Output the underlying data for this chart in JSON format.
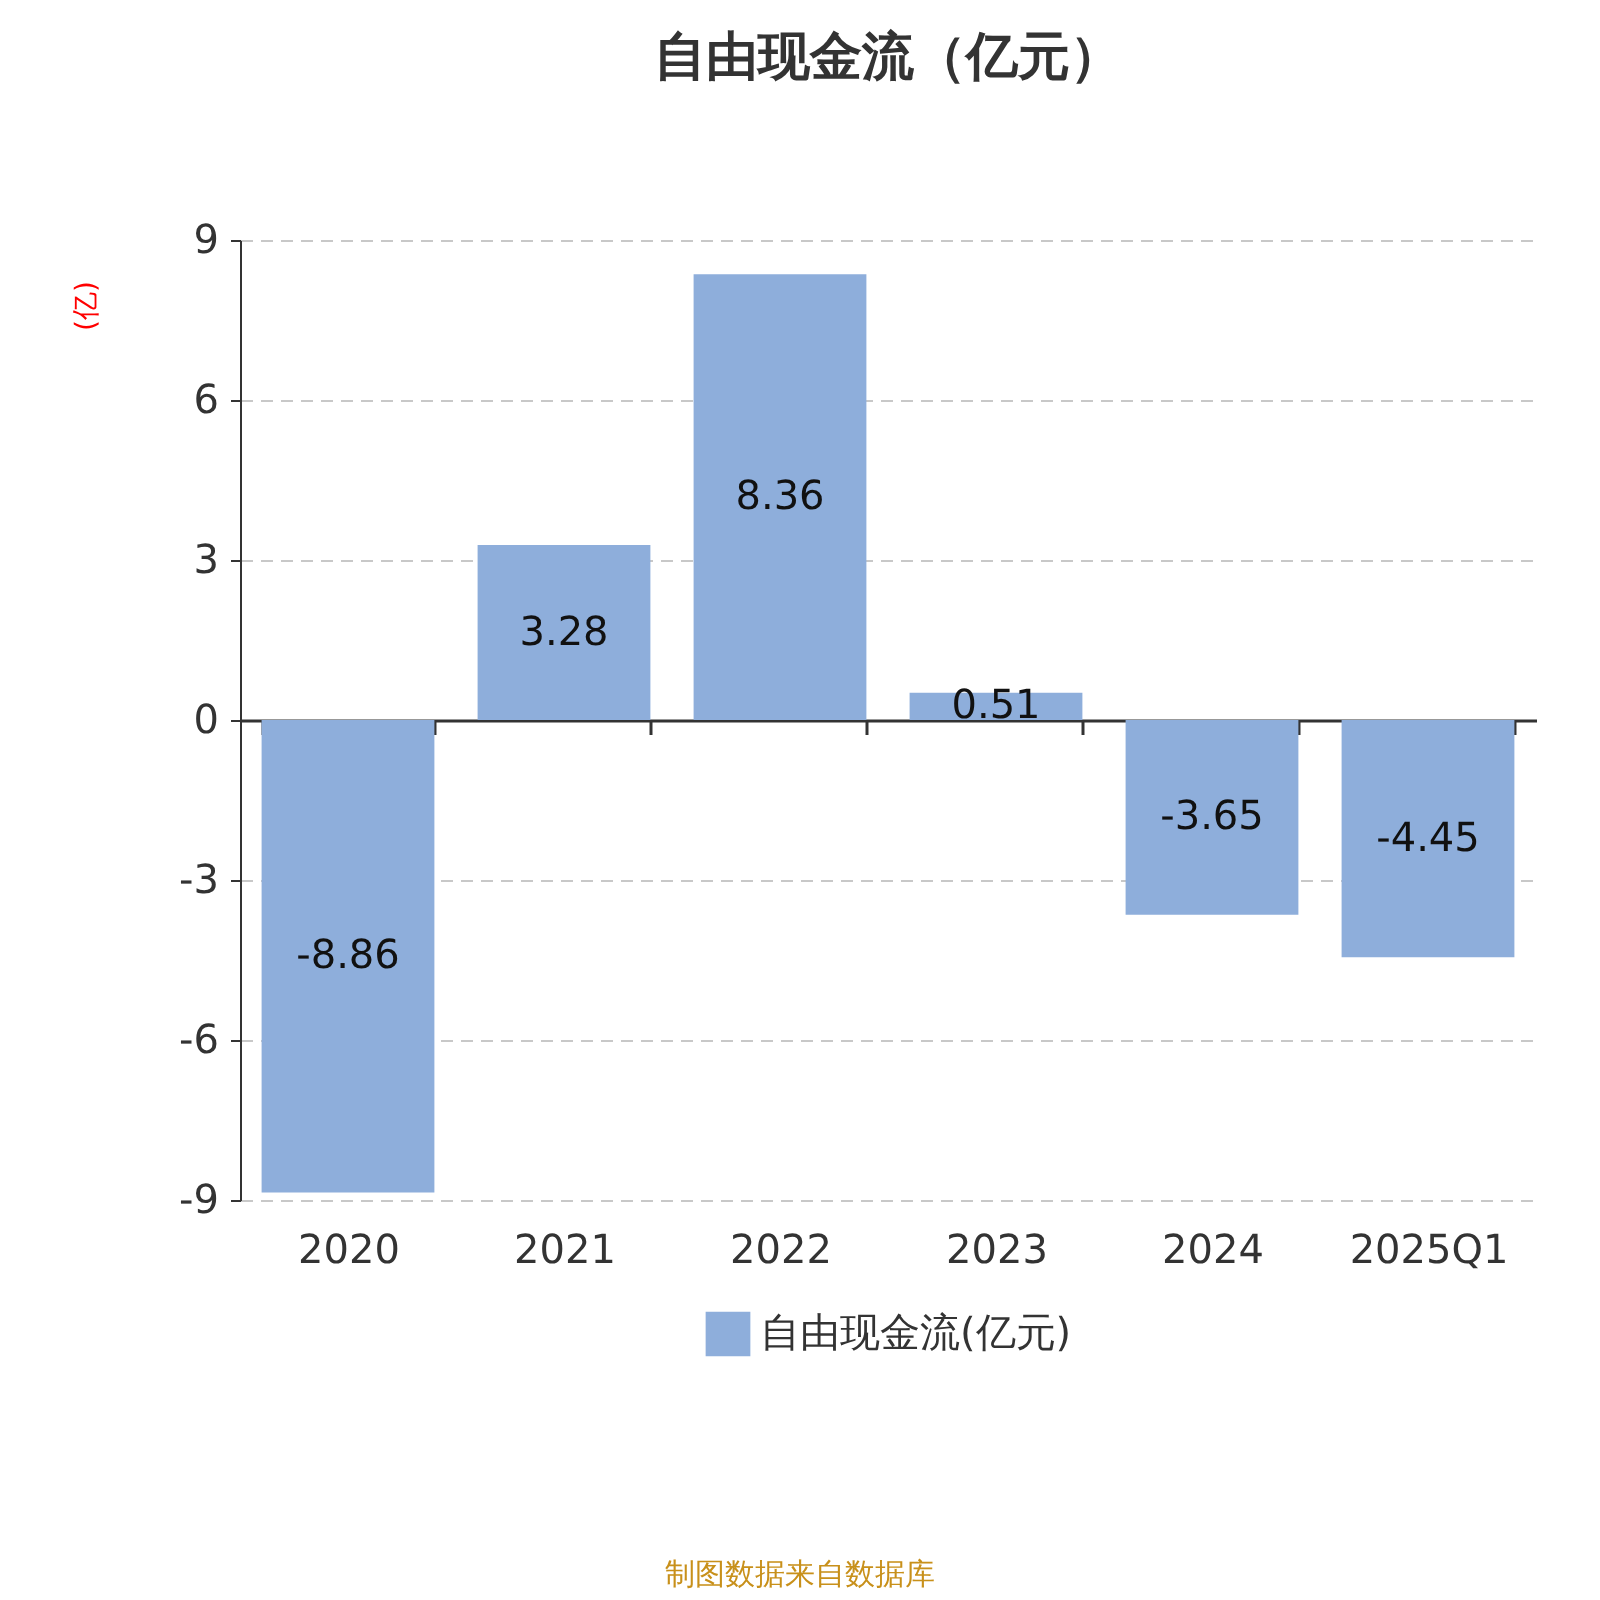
{
  "chart_data": {
    "type": "bar",
    "title": "自由现金流（亿元）",
    "ylabel": "(亿)",
    "categories": [
      "2020",
      "2021",
      "2022",
      "2023",
      "2024",
      "2025Q1"
    ],
    "series": [
      {
        "name": "自由现金流(亿元)",
        "color": "#8eaedb",
        "values": [
          -8.86,
          3.28,
          8.36,
          0.51,
          -3.65,
          -4.45
        ]
      }
    ],
    "ylim": [
      -9,
      9
    ],
    "yticks": [
      -9,
      -6,
      -3,
      0,
      3,
      6,
      9
    ],
    "grid": "y",
    "legend": "bottom",
    "data_labels": true,
    "annotations": [
      "制图数据来自数据库"
    ]
  }
}
